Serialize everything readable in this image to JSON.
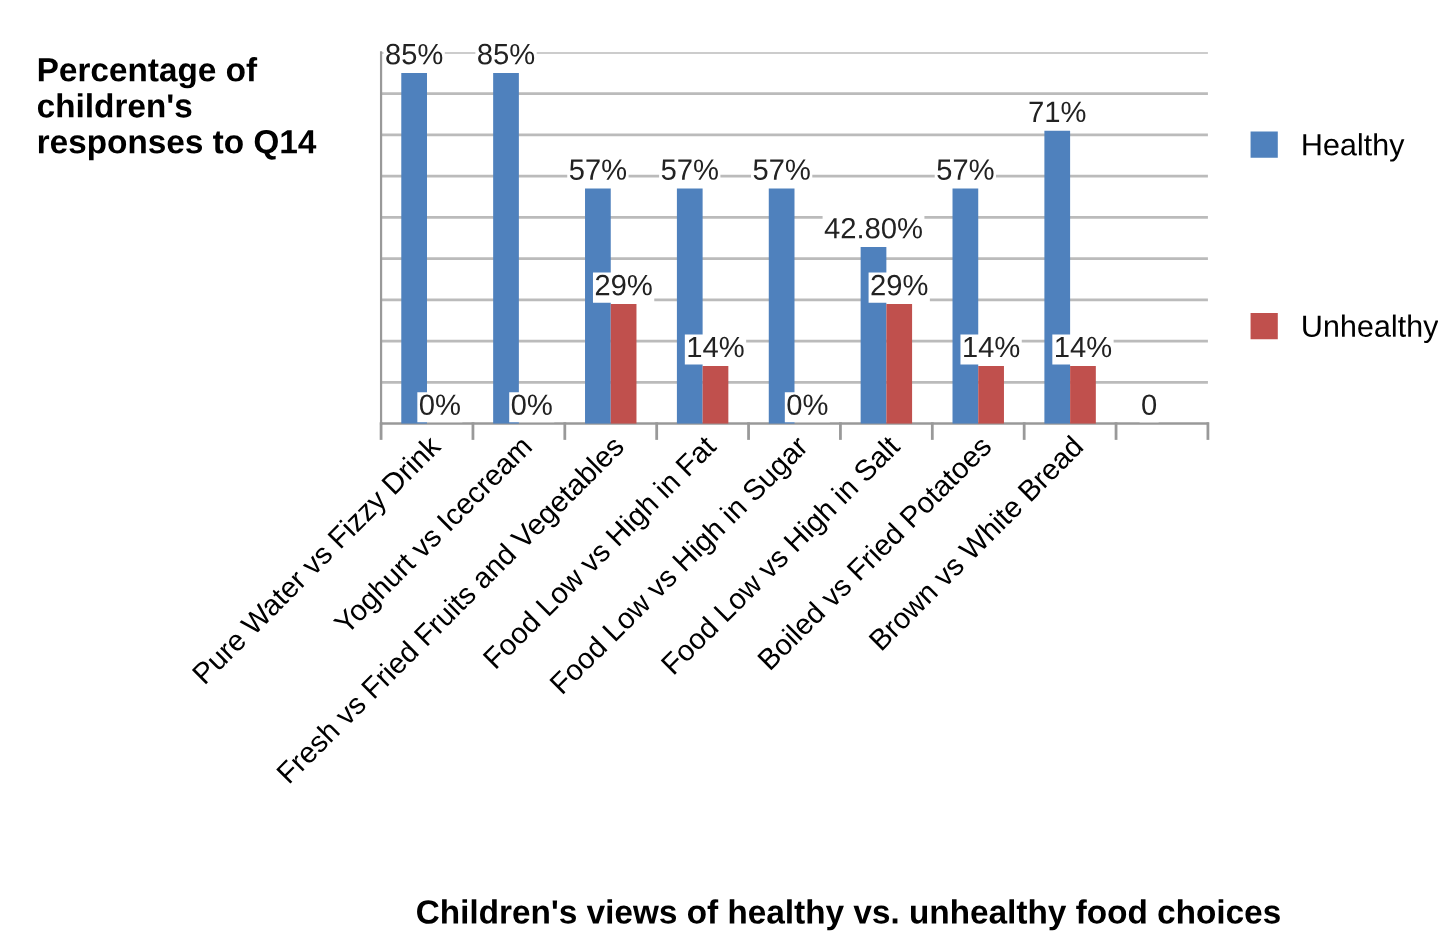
{
  "chart_data": {
    "type": "bar",
    "ylabel": "Percentage of children's responses to Q14",
    "xlabel": "Children's views of healthy vs. unhealthy food choices",
    "categories": [
      "Pure Water vs Fizzy Drink",
      "Yoghurt vs Icecream",
      "Fresh vs Fried Fruits and Vegetables",
      "Food Low vs High in Fat",
      "Food Low vs High in Sugar",
      "Food Low vs High in Salt",
      "Boiled vs Fried Potatoes",
      "Brown vs White Bread",
      null
    ],
    "series": [
      {
        "name": "Healthy",
        "color": "#4f81bd",
        "values": [
          85,
          85,
          57,
          57,
          57,
          42.8,
          57,
          71,
          0
        ],
        "value_labels": [
          "85%",
          "85%",
          "57%",
          "57%",
          "57%",
          "42.80%",
          "57%",
          "71%",
          "0"
        ]
      },
      {
        "name": "Unhealthy",
        "color": "#c0504d",
        "values": [
          0,
          0,
          29,
          14,
          0,
          29,
          14,
          14,
          null
        ],
        "value_labels": [
          "0%",
          "0%",
          "29%",
          "14%",
          "0%",
          "29%",
          "14%",
          "14%",
          null
        ]
      }
    ],
    "ylim": [
      0,
      90
    ],
    "yticks": [
      {
        "value": 0,
        "label": null
      },
      {
        "value": 10,
        "label": null
      },
      {
        "value": 20,
        "label": null
      },
      {
        "value": 30,
        "label": null
      },
      {
        "value": 40,
        "label": null
      },
      {
        "value": 50,
        "label": null
      },
      {
        "value": 60,
        "label": null
      },
      {
        "value": 70,
        "label": null
      },
      {
        "value": 80,
        "label": null
      },
      {
        "value": 90,
        "label": null
      }
    ],
    "grid": "y",
    "legend": "right"
  }
}
